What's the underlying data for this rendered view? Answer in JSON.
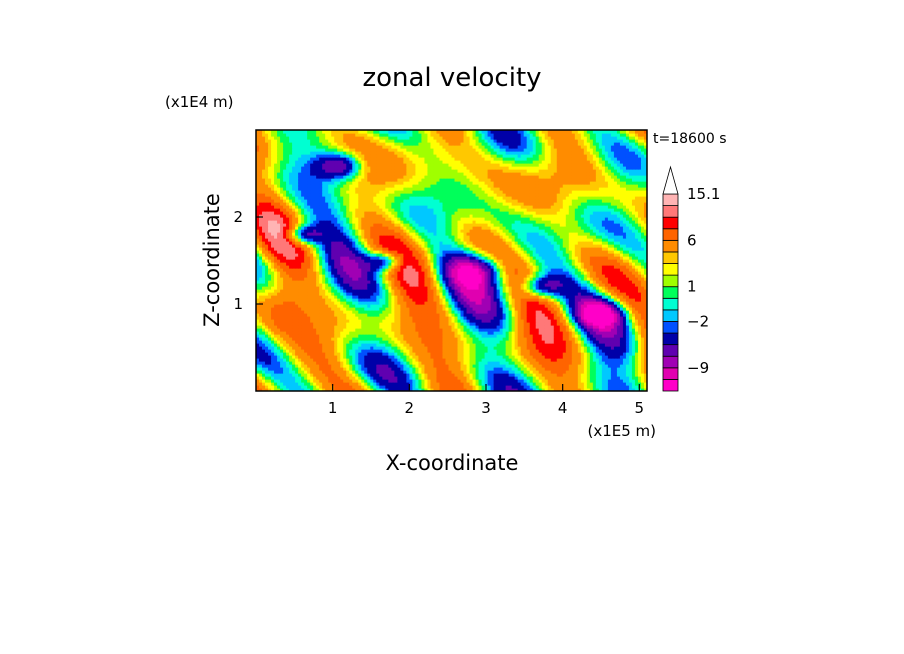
{
  "chart_data": {
    "type": "heatmap",
    "title": "zonal velocity",
    "xlabel": "X-coordinate",
    "ylabel": "Z-coordinate",
    "x_scale_label": "(x1E5 m)",
    "y_scale_label": "(x1E4 m)",
    "time_label": "t=18600 s",
    "xlim": [
      0,
      5.1
    ],
    "ylim": [
      0,
      3.0
    ],
    "x_ticks": [
      1,
      2,
      3,
      4,
      5
    ],
    "x_tick_labels": [
      "1",
      "2",
      "3",
      "4",
      "5"
    ],
    "y_ticks": [
      1,
      2
    ],
    "y_tick_labels": [
      "1",
      "2"
    ],
    "colorbar": {
      "levels": [
        -13,
        -11,
        -9,
        -7,
        -5,
        -3,
        -2,
        -1,
        0,
        1,
        2,
        3,
        4,
        6,
        8,
        10,
        12,
        15.1
      ],
      "tick_labels": [
        {
          "value": 15.1,
          "label": "15.1"
        },
        {
          "value": 6,
          "label": "6"
        },
        {
          "value": 1,
          "label": "1"
        },
        {
          "value": -2,
          "label": "−2"
        },
        {
          "value": -9,
          "label": "−9"
        }
      ],
      "colors": [
        "#ff00c8",
        "#e000b0",
        "#a000b4",
        "#6000b0",
        "#0000a8",
        "#0050ff",
        "#00c8ff",
        "#00ffd2",
        "#00ff5a",
        "#a0ff00",
        "#ffff00",
        "#ffc800",
        "#ff8c00",
        "#ff6400",
        "#ff0000",
        "#ff7878",
        "#ffb4b4"
      ],
      "extend_max": true
    },
    "field_description": "2-D contour field of zonal velocity over X (0-5.1 x1E5 m) and Z (0-3 x1E4 m), values roughly -13 to 15.1"
  }
}
